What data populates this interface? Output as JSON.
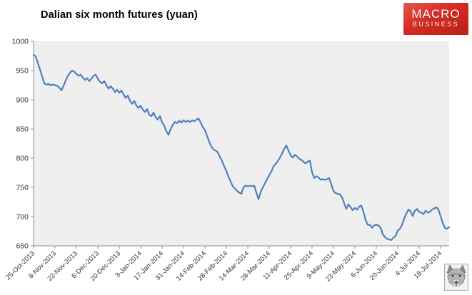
{
  "header": {
    "title": "Dalian six month futures (yuan)"
  },
  "logo": {
    "line1": "MACRO",
    "line2": "BUSINESS",
    "bg_color": "#cc2a22",
    "text_color": "#ffffff"
  },
  "watermark": {
    "icon": "wolf-icon"
  },
  "chart_data": {
    "type": "line",
    "title": "Dalian six month futures (yuan)",
    "ylabel": "",
    "xlabel": "",
    "unit": "yuan",
    "ylim": [
      650,
      1000
    ],
    "y_ticks": [
      650,
      700,
      750,
      800,
      850,
      900,
      950,
      1000
    ],
    "grid": "off",
    "legend": "none",
    "plot_bg": "#efefef",
    "axis_color": "#8c8c8c",
    "label_color": "#333333",
    "line_color": "#4f81bd",
    "tick_every": 10,
    "x_tick_labels": [
      "25-Oct-2013",
      "8-Nov-2013",
      "22-Nov-2013",
      "6-Dec-2013",
      "20-Dec-2013",
      "3-Jan-2014",
      "17-Jan-2014",
      "31-Jan-2014",
      "14-Feb-2014",
      "28-Feb-2014",
      "14-Mar-2014",
      "28-Mar-2014",
      "11-Apr-2014",
      "25-Apr-2014",
      "9-May-2014",
      "23-May-2014",
      "6-Jun-2014",
      "20-Jun-2014",
      "4-Jul-2014",
      "18-Jul-2014"
    ],
    "values": [
      977,
      974,
      963,
      952,
      940,
      928,
      926,
      927,
      925,
      926,
      925,
      924,
      921,
      916,
      924,
      933,
      941,
      946,
      950,
      948,
      944,
      941,
      943,
      938,
      934,
      937,
      932,
      936,
      941,
      943,
      936,
      931,
      928,
      932,
      925,
      919,
      923,
      919,
      913,
      917,
      912,
      916,
      909,
      903,
      907,
      898,
      893,
      898,
      890,
      886,
      890,
      883,
      879,
      884,
      874,
      872,
      878,
      870,
      866,
      872,
      861,
      856,
      846,
      840,
      850,
      857,
      862,
      860,
      864,
      861,
      865,
      862,
      864,
      862,
      865,
      863,
      866,
      868,
      861,
      853,
      848,
      838,
      828,
      820,
      815,
      813,
      810,
      802,
      795,
      786,
      778,
      768,
      760,
      752,
      748,
      744,
      741,
      739,
      750,
      753,
      752,
      753,
      752,
      753,
      741,
      730,
      742,
      750,
      757,
      764,
      771,
      777,
      786,
      790,
      795,
      801,
      808,
      816,
      822,
      813,
      805,
      801,
      806,
      803,
      799,
      797,
      794,
      791,
      794,
      796,
      776,
      766,
      769,
      767,
      763,
      764,
      763,
      764,
      766,
      755,
      744,
      740,
      739,
      738,
      733,
      723,
      713,
      721,
      716,
      711,
      715,
      712,
      717,
      719,
      708,
      694,
      686,
      686,
      681,
      685,
      686,
      685,
      681,
      670,
      665,
      662,
      661,
      660,
      664,
      667,
      676,
      679,
      686,
      697,
      705,
      712,
      709,
      701,
      710,
      713,
      708,
      707,
      704,
      710,
      707,
      708,
      712,
      714,
      716,
      712,
      701,
      689,
      681,
      679,
      682
    ]
  }
}
